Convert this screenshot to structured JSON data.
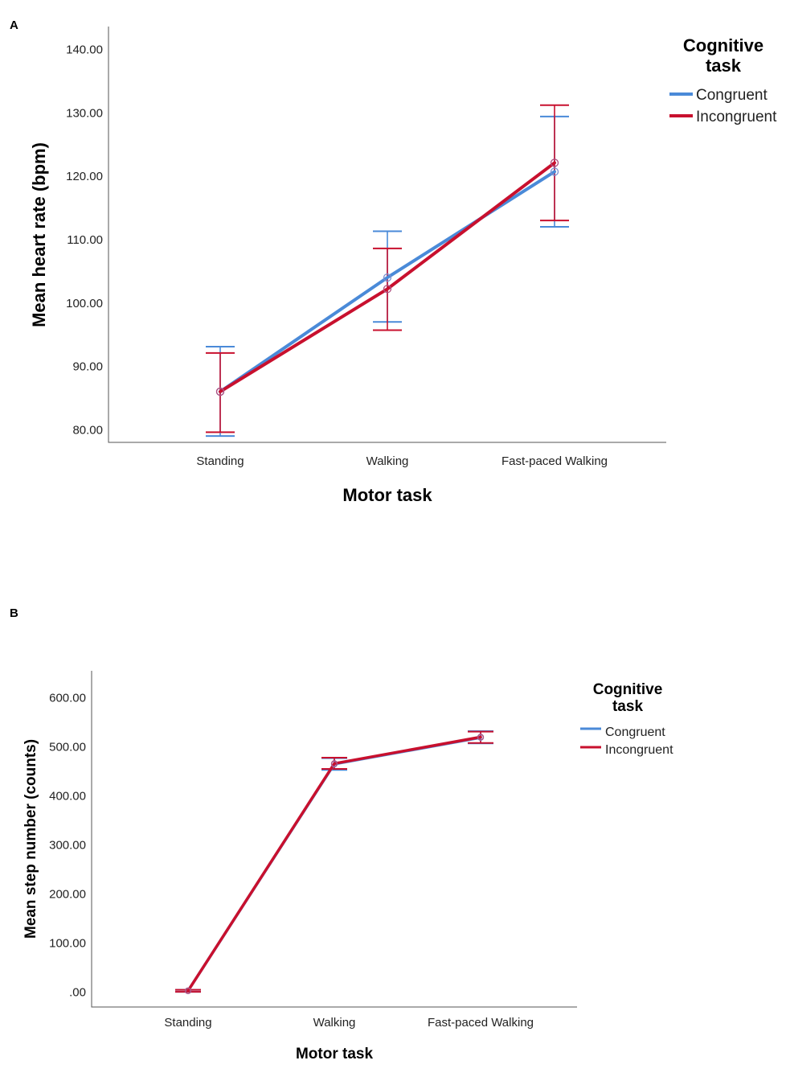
{
  "chart_data": [
    {
      "type": "line",
      "panel_label": "A",
      "categories": [
        "Standing",
        "Walking",
        "Fast-paced Walking"
      ],
      "y_ticks": [
        "80.00",
        "90.00",
        "100.00",
        "110.00",
        "120.00",
        "130.00",
        "140.00"
      ],
      "ylim": [
        78.0,
        143.6
      ],
      "xlabel": "Motor task",
      "ylabel": "Mean heart rate (bpm)",
      "legend": {
        "title_line1": "Cognitive",
        "title_line2": "task",
        "position": "top-right"
      },
      "series": [
        {
          "name": "Congruent",
          "color": "#4a8ad8",
          "values": [
            86.0,
            104.0,
            120.7
          ],
          "err_low": [
            79.0,
            97.0,
            112.0
          ],
          "err_high": [
            93.1,
            111.3,
            129.4
          ]
        },
        {
          "name": "Incongruent",
          "color": "#c8102e",
          "values": [
            86.0,
            102.2,
            122.1
          ],
          "err_low": [
            79.6,
            95.7,
            113.0
          ],
          "err_high": [
            92.1,
            108.6,
            131.2
          ]
        }
      ]
    },
    {
      "type": "line",
      "panel_label": "B",
      "categories": [
        "Standing",
        "Walking",
        "Fast-paced Walking"
      ],
      "y_ticks": [
        ".00",
        "100.00",
        "200.00",
        "300.00",
        "400.00",
        "500.00",
        "600.00"
      ],
      "ylim": [
        -30,
        655
      ],
      "xlabel": "Motor task",
      "ylabel": "Mean step number (counts)",
      "legend": {
        "title_line1": "Cognitive",
        "title_line2": "task",
        "position": "top-right"
      },
      "series": [
        {
          "name": "Congruent",
          "color": "#4a8ad8",
          "values": [
            3,
            465,
            519
          ],
          "err_low": [
            1,
            453,
            507
          ],
          "err_high": [
            5,
            477,
            532
          ]
        },
        {
          "name": "Incongruent",
          "color": "#c8102e",
          "values": [
            3,
            466,
            520
          ],
          "err_low": [
            1,
            455,
            508
          ],
          "err_high": [
            5,
            478,
            531
          ]
        }
      ]
    }
  ]
}
